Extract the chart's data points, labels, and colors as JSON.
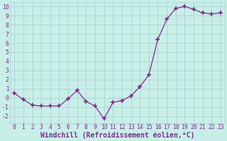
{
  "x": [
    0,
    1,
    2,
    3,
    4,
    5,
    6,
    7,
    8,
    9,
    10,
    11,
    12,
    13,
    14,
    15,
    16,
    17,
    18,
    19,
    20,
    21,
    22,
    23
  ],
  "y": [
    0.5,
    -0.2,
    -0.8,
    -0.9,
    -0.9,
    -0.9,
    -0.1,
    0.8,
    -0.4,
    -0.9,
    -2.3,
    -0.5,
    -0.3,
    0.2,
    1.2,
    2.5,
    6.4,
    8.6,
    9.8,
    10.0,
    9.7,
    9.3,
    9.2,
    9.3
  ],
  "line_color": "#7B2D8B",
  "marker": "+",
  "marker_size": 4,
  "marker_lw": 1.2,
  "bg_color": "#C8EEE8",
  "grid_color": "#A8CCCC",
  "xlabel": "Windchill (Refroidissement éolien,°C)",
  "ylabel": "",
  "ylim": [
    -2.8,
    10.5
  ],
  "xlim": [
    -0.5,
    23.5
  ],
  "yticks": [
    -2,
    -1,
    0,
    1,
    2,
    3,
    4,
    5,
    6,
    7,
    8,
    9,
    10
  ],
  "xticks": [
    0,
    1,
    2,
    3,
    4,
    5,
    6,
    7,
    8,
    9,
    10,
    11,
    12,
    13,
    14,
    15,
    16,
    17,
    18,
    19,
    20,
    21,
    22,
    23
  ],
  "tick_color": "#7B2D8B",
  "tick_fontsize": 5.8,
  "xlabel_fontsize": 7.0,
  "linewidth": 0.9
}
